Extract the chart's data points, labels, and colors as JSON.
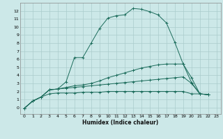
{
  "xlabel": "Humidex (Indice chaleur)",
  "ylabel": "",
  "bg_color": "#cce8e8",
  "grid_color": "#aacccc",
  "line_color": "#1a6b5a",
  "xlim": [
    -0.5,
    23.5
  ],
  "ylim": [
    -0.8,
    13.0
  ],
  "yticks": [
    0,
    1,
    2,
    3,
    4,
    5,
    6,
    7,
    8,
    9,
    10,
    11,
    12
  ],
  "xticks": [
    0,
    1,
    2,
    3,
    4,
    5,
    6,
    7,
    8,
    9,
    10,
    11,
    12,
    13,
    14,
    15,
    16,
    17,
    18,
    19,
    20,
    21,
    22,
    23
  ],
  "curves": [
    {
      "x": [
        0,
        1,
        2,
        3,
        4,
        5,
        6,
        7,
        8,
        9,
        10,
        11,
        12,
        13,
        14,
        15,
        16,
        17,
        18,
        19,
        20,
        21,
        22
      ],
      "y": [
        -0.1,
        0.8,
        1.3,
        2.2,
        2.3,
        3.2,
        6.2,
        6.2,
        8.0,
        9.8,
        11.1,
        11.4,
        11.5,
        12.3,
        12.2,
        11.9,
        11.5,
        10.5,
        8.1,
        5.4,
        3.1,
        1.7,
        1.6
      ]
    },
    {
      "x": [
        0,
        1,
        2,
        3,
        4,
        5,
        6,
        7,
        8,
        9,
        10,
        11,
        12,
        13,
        14,
        15,
        16,
        17,
        18,
        19,
        20,
        21,
        22
      ],
      "y": [
        -0.1,
        0.8,
        1.3,
        2.2,
        2.3,
        2.5,
        2.7,
        2.8,
        3.0,
        3.3,
        3.7,
        4.0,
        4.3,
        4.6,
        4.9,
        5.1,
        5.3,
        5.4,
        5.4,
        5.4,
        3.7,
        1.7,
        1.6
      ]
    },
    {
      "x": [
        0,
        1,
        2,
        3,
        4,
        5,
        6,
        7,
        8,
        9,
        10,
        11,
        12,
        13,
        14,
        15,
        16,
        17,
        18,
        19,
        20,
        21,
        22
      ],
      "y": [
        -0.1,
        0.8,
        1.3,
        2.2,
        2.3,
        2.4,
        2.5,
        2.6,
        2.7,
        2.8,
        2.9,
        3.0,
        3.1,
        3.2,
        3.3,
        3.4,
        3.5,
        3.6,
        3.7,
        3.8,
        3.0,
        1.7,
        1.6
      ]
    },
    {
      "x": [
        0,
        1,
        2,
        3,
        4,
        5,
        6,
        7,
        8,
        9,
        10,
        11,
        12,
        13,
        14,
        15,
        16,
        17,
        18,
        19,
        20,
        21,
        22
      ],
      "y": [
        -0.1,
        0.8,
        1.3,
        1.7,
        1.8,
        1.8,
        1.8,
        1.9,
        1.9,
        1.9,
        2.0,
        2.0,
        2.0,
        2.0,
        2.0,
        2.0,
        2.0,
        2.0,
        2.0,
        2.0,
        1.7,
        1.7,
        1.6
      ]
    }
  ]
}
